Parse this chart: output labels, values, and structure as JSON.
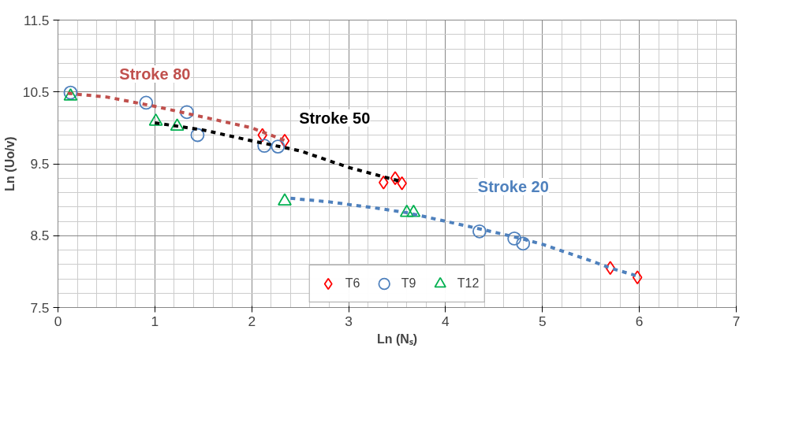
{
  "chart_data": {
    "type": "scatter",
    "xlabel": "Ln (Nₛ)",
    "ylabel": "Ln (Uo/v)",
    "xlim": [
      0,
      7
    ],
    "xticks": [
      0,
      1,
      2,
      3,
      4,
      5,
      6,
      7
    ],
    "ylim": [
      7.5,
      11.5
    ],
    "yticks": [
      7.5,
      8.5,
      9.5,
      10.5,
      11.5
    ],
    "grid": true,
    "legend": "bottom",
    "series": [
      {
        "name": "T6",
        "color": "#ff0000",
        "marker": "diamond",
        "x": [
          2.11,
          2.34,
          3.36,
          3.48,
          3.55,
          5.7,
          5.98
        ],
        "values": [
          9.9,
          9.82,
          9.24,
          9.3,
          9.23,
          8.05,
          7.92
        ]
      },
      {
        "name": "T9",
        "color": "#4f81bd",
        "marker": "circle",
        "x": [
          0.13,
          0.91,
          1.33,
          1.44,
          2.13,
          2.27,
          4.35,
          4.71,
          4.8
        ],
        "values": [
          10.49,
          10.35,
          10.22,
          9.9,
          9.75,
          9.74,
          8.56,
          8.46,
          8.39
        ]
      },
      {
        "name": "T12",
        "color": "#00b050",
        "marker": "triangle",
        "x": [
          0.13,
          1.01,
          1.23,
          2.34,
          3.6,
          3.67
        ],
        "values": [
          10.44,
          10.09,
          10.02,
          8.98,
          8.82,
          8.82
        ]
      },
      {
        "name": "Stroke 80",
        "type": "line",
        "line_style": "dashed",
        "color": "#c0504d",
        "x": [
          0.1,
          0.5,
          1.0,
          1.5,
          2.0,
          2.35
        ],
        "values": [
          10.48,
          10.43,
          10.3,
          10.15,
          10.0,
          9.82
        ]
      },
      {
        "name": "Stroke 50",
        "type": "line",
        "line_style": "dashed",
        "color": "#000000",
        "x": [
          1.0,
          1.5,
          2.0,
          2.5,
          3.0,
          3.55
        ],
        "values": [
          10.07,
          9.97,
          9.82,
          9.68,
          9.45,
          9.25
        ]
      },
      {
        "name": "Stroke 20",
        "type": "line",
        "line_style": "dashed",
        "color": "#4f81bd",
        "x": [
          2.4,
          2.8,
          3.3,
          3.6,
          4.0,
          4.4,
          4.75,
          5.0,
          5.5,
          5.7,
          6.0
        ],
        "values": [
          9.02,
          8.97,
          8.88,
          8.82,
          8.7,
          8.58,
          8.47,
          8.38,
          8.15,
          8.05,
          7.93
        ]
      }
    ]
  }
}
